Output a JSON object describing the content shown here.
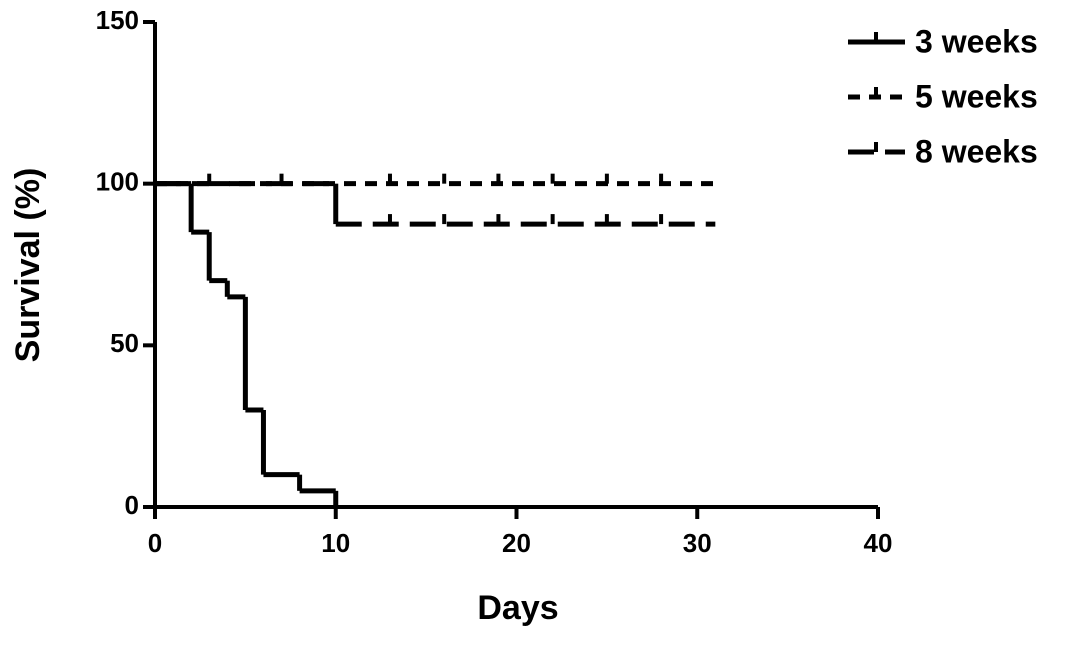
{
  "chart_data": {
    "type": "survival",
    "x_label": "Days",
    "y_label": "Survival (%)",
    "xlim": [
      0,
      40
    ],
    "ylim": [
      0,
      150
    ],
    "xticks": [
      0,
      10,
      20,
      30,
      40
    ],
    "yticks": [
      0,
      50,
      100,
      150
    ],
    "legend": "top-right",
    "series": [
      {
        "name": "3 weeks",
        "color": "#000000",
        "dash": "solid",
        "x": [
          0,
          2,
          3,
          4,
          5,
          6,
          8,
          10
        ],
        "values": [
          100,
          85,
          70,
          65,
          30,
          10,
          5,
          0
        ],
        "censored": []
      },
      {
        "name": "5 weeks",
        "color": "#000000",
        "dash": "short",
        "x": [
          0,
          31
        ],
        "values": [
          100,
          100
        ],
        "censored": [
          3,
          7,
          13,
          16,
          19,
          22,
          25,
          28
        ]
      },
      {
        "name": "8 weeks",
        "color": "#000000",
        "dash": "long",
        "x": [
          0,
          10,
          31
        ],
        "values": [
          100,
          87.5,
          87.5
        ],
        "censored": [
          13,
          16,
          19,
          22,
          25,
          28
        ]
      }
    ]
  }
}
